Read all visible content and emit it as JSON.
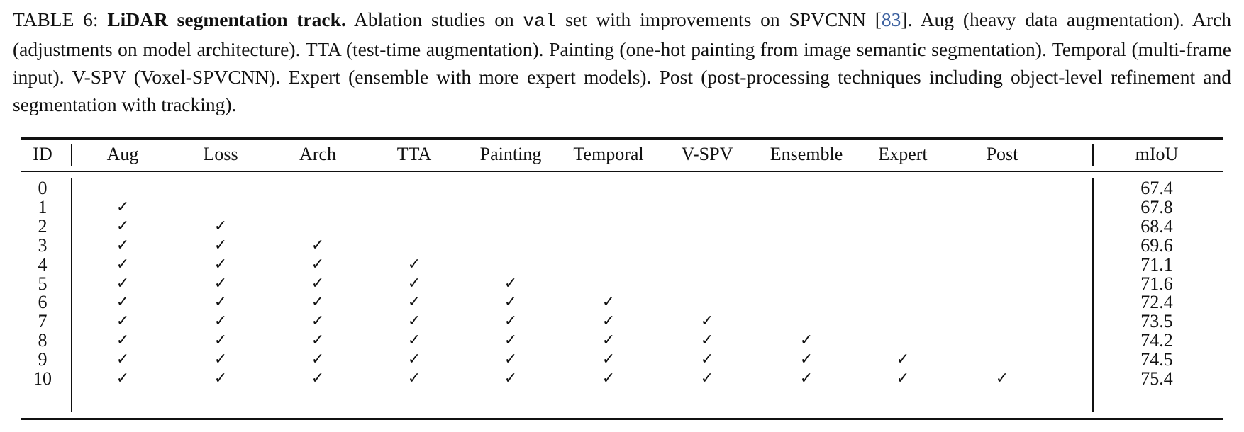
{
  "caption": {
    "label": "TABLE 6:",
    "title": "LiDAR segmentation track.",
    "text_1": " Ablation studies on ",
    "code": "val",
    "text_2": " set with improvements on SPVCNN [",
    "ref": "83",
    "text_3": "]. Aug (heavy data augmentation). Arch (adjustments on model architecture). TTA (test-time augmentation). Painting (one-hot painting from image semantic segmentation). Temporal (multi-frame input). V-SPV (Voxel-SPVCNN). Expert (ensemble with more expert models). Post (post-processing techniques including object-level refinement and segmentation with tracking)."
  },
  "table": {
    "check_symbol": "✓",
    "columns": [
      "ID",
      "Aug",
      "Loss",
      "Arch",
      "TTA",
      "Painting",
      "Temporal",
      "V-SPV",
      "Ensemble",
      "Expert",
      "Post",
      "mIoU"
    ],
    "rows": [
      {
        "id": "0",
        "checks": 0,
        "miou": "67.4"
      },
      {
        "id": "1",
        "checks": 1,
        "miou": "67.8"
      },
      {
        "id": "2",
        "checks": 2,
        "miou": "68.4"
      },
      {
        "id": "3",
        "checks": 3,
        "miou": "69.6"
      },
      {
        "id": "4",
        "checks": 4,
        "miou": "71.1"
      },
      {
        "id": "5",
        "checks": 5,
        "miou": "71.6"
      },
      {
        "id": "6",
        "checks": 6,
        "miou": "72.4"
      },
      {
        "id": "7",
        "checks": 7,
        "miou": "73.5"
      },
      {
        "id": "8",
        "checks": 8,
        "miou": "74.2"
      },
      {
        "id": "9",
        "checks": 9,
        "miou": "74.5"
      },
      {
        "id": "10",
        "checks": 10,
        "miou": "75.4"
      }
    ]
  }
}
